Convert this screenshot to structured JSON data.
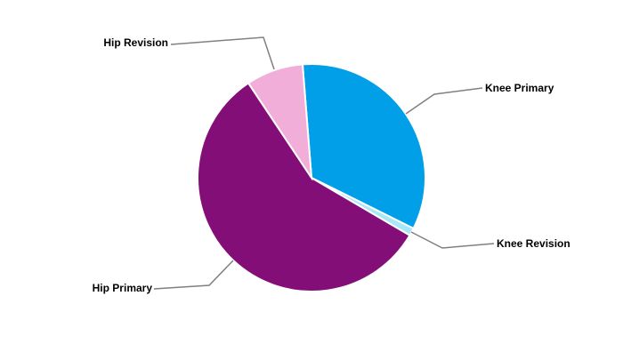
{
  "chart_data": {
    "type": "pie",
    "title": "",
    "slices": [
      {
        "label": "Knee Primary",
        "value": 33.6,
        "color": "#009FE8"
      },
      {
        "label": "Knee Revision",
        "value": 1.1,
        "color": "#A8E6F8"
      },
      {
        "label": "Hip Primary",
        "value": 57.2,
        "color": "#840E78"
      },
      {
        "label": "Hip Revision",
        "value": 8.1,
        "color": "#F0AED8"
      }
    ],
    "legend": "none",
    "labels": "outside-with-leader-lines"
  }
}
